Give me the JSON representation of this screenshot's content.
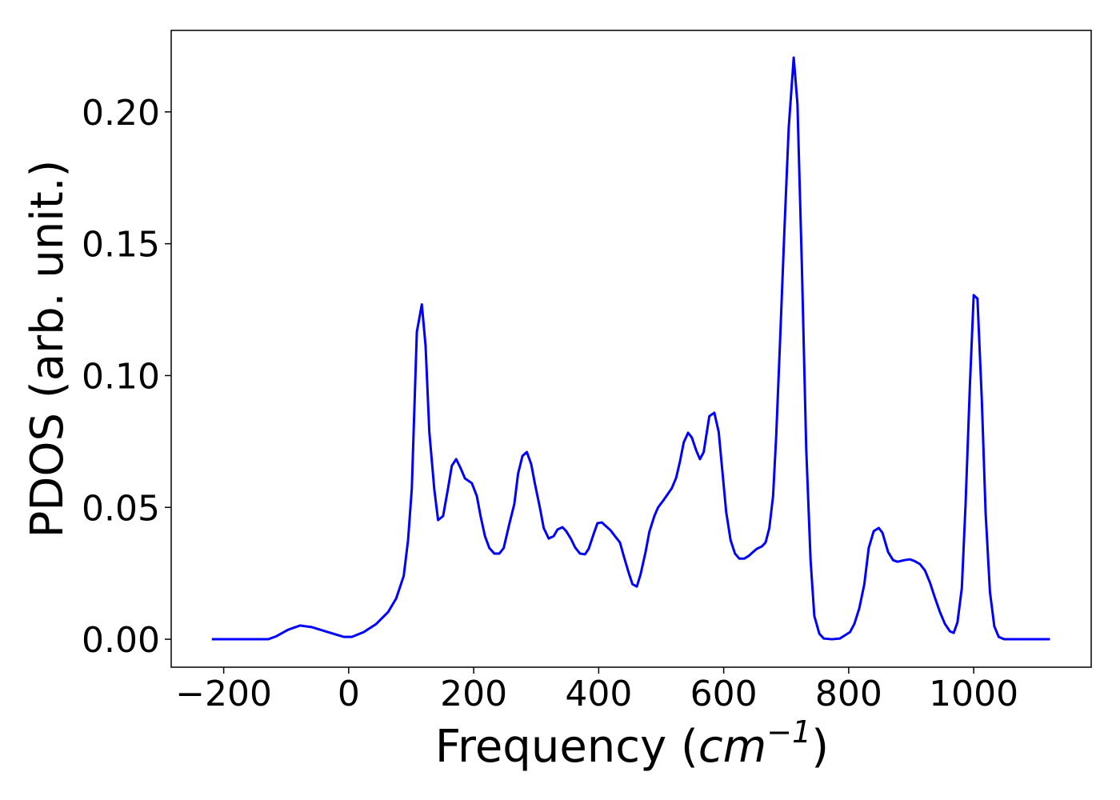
{
  "chart_data": {
    "type": "line",
    "xlabel": {
      "prefix": "Frequency (",
      "unit": "cm",
      "exponent": "−1",
      "suffix": ")"
    },
    "ylabel": "PDOS (arb. unit.)",
    "x": [
      -219,
      -129,
      -117,
      -97,
      -78,
      -59,
      -33,
      -8,
      5,
      24,
      44,
      63,
      76,
      88,
      95,
      101,
      109,
      117,
      123,
      129,
      137,
      143,
      151,
      159,
      165,
      172,
      179,
      186,
      197,
      205,
      211,
      218,
      225,
      233,
      241,
      248,
      257,
      265,
      271,
      278,
      285,
      292,
      298,
      306,
      312,
      320,
      328,
      334,
      342,
      348,
      356,
      362,
      370,
      378,
      384,
      392,
      398,
      405,
      412,
      419,
      426,
      434,
      440,
      448,
      454,
      461,
      467,
      475,
      481,
      489,
      495,
      503,
      510,
      517,
      524,
      530,
      536,
      543,
      549,
      556,
      562,
      568,
      577,
      585,
      592,
      598,
      604,
      611,
      618,
      625,
      633,
      640,
      647,
      653,
      661,
      667,
      673,
      679,
      684,
      690,
      697,
      704,
      712,
      718,
      725,
      732,
      739,
      745,
      753,
      760,
      773,
      786,
      794,
      802,
      809,
      817,
      825,
      832,
      840,
      848,
      854,
      863,
      871,
      878,
      889,
      898,
      905,
      914,
      922,
      930,
      937,
      946,
      954,
      962,
      968,
      974,
      981,
      987,
      994,
      1000,
      1006,
      1013,
      1019,
      1026,
      1033,
      1040,
      1049,
      1122
    ],
    "series": [
      {
        "name": "PDOS",
        "color": "#0000ff",
        "values": [
          0,
          0,
          0.001,
          0.0036,
          0.0052,
          0.0046,
          0.0027,
          0.0009,
          0.0009,
          0.0027,
          0.0058,
          0.0103,
          0.0155,
          0.024,
          0.0376,
          0.0573,
          0.1165,
          0.127,
          0.1113,
          0.0786,
          0.0567,
          0.0452,
          0.0467,
          0.0573,
          0.0658,
          0.0683,
          0.0649,
          0.061,
          0.0592,
          0.0543,
          0.0467,
          0.0391,
          0.0346,
          0.0325,
          0.0325,
          0.0346,
          0.0437,
          0.0513,
          0.0628,
          0.0695,
          0.071,
          0.0664,
          0.0589,
          0.0498,
          0.0422,
          0.0382,
          0.0391,
          0.0416,
          0.0425,
          0.041,
          0.0379,
          0.0349,
          0.0325,
          0.0322,
          0.0343,
          0.04,
          0.044,
          0.0443,
          0.0428,
          0.0413,
          0.0391,
          0.0367,
          0.0316,
          0.0252,
          0.0209,
          0.02,
          0.0246,
          0.0331,
          0.0407,
          0.0467,
          0.05,
          0.0525,
          0.0549,
          0.0573,
          0.0613,
          0.0674,
          0.0746,
          0.0783,
          0.0765,
          0.0716,
          0.0683,
          0.071,
          0.0846,
          0.0859,
          0.0786,
          0.0634,
          0.0482,
          0.0376,
          0.0325,
          0.0306,
          0.0306,
          0.0316,
          0.0331,
          0.0343,
          0.0352,
          0.0367,
          0.0422,
          0.0543,
          0.0771,
          0.112,
          0.1544,
          0.1939,
          0.2206,
          0.203,
          0.1423,
          0.0725,
          0.03,
          0.0088,
          0.0021,
          0.0003,
          0,
          0.0003,
          0.0015,
          0.0027,
          0.0058,
          0.0118,
          0.0209,
          0.0346,
          0.041,
          0.0422,
          0.0404,
          0.0331,
          0.03,
          0.0294,
          0.03,
          0.0303,
          0.0297,
          0.0285,
          0.0261,
          0.0215,
          0.0164,
          0.0103,
          0.0058,
          0.003,
          0.0024,
          0.0064,
          0.0194,
          0.0513,
          0.0968,
          0.1305,
          0.1292,
          0.0907,
          0.0482,
          0.0179,
          0.0049,
          0.0009,
          0,
          0
        ]
      }
    ],
    "xlim": [
      -284,
      1188
    ],
    "ylim": [
      -0.0106,
      0.2309
    ],
    "xticks": [
      {
        "value": -200,
        "label": "−200"
      },
      0,
      200,
      400,
      600,
      800,
      1000
    ],
    "yticks": [
      {
        "value": 0,
        "label": "0.00"
      },
      0.05,
      {
        "value": 0.1,
        "label": "0.10"
      },
      0.15,
      {
        "value": 0.2,
        "label": "0.20"
      }
    ]
  }
}
